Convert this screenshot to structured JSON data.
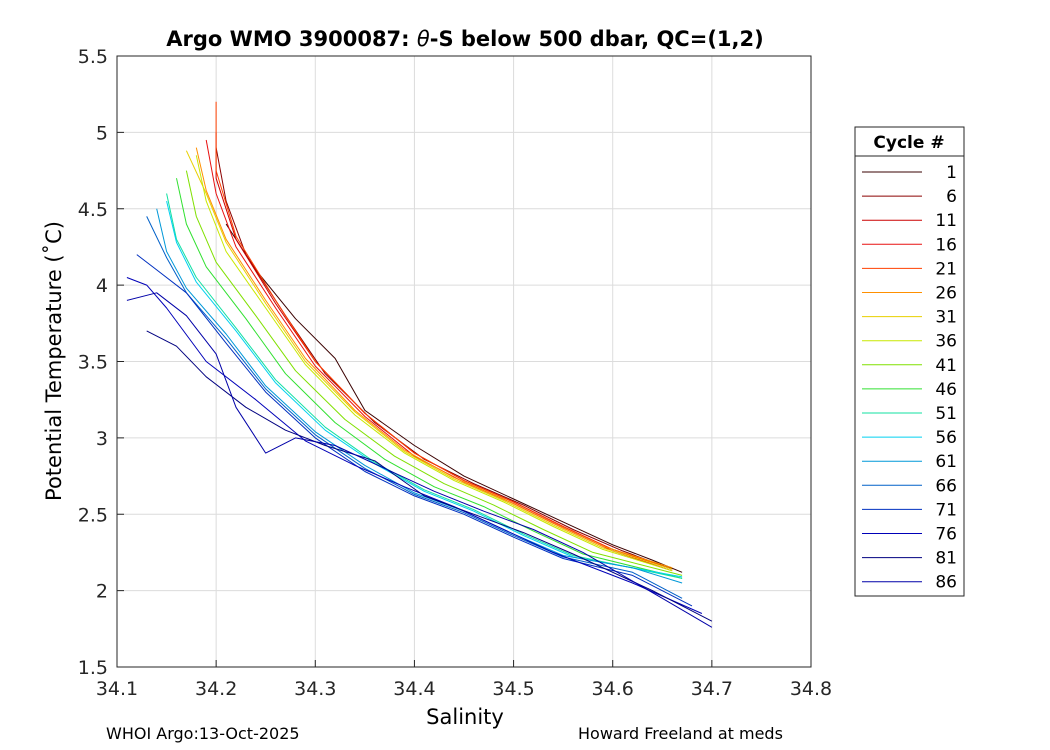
{
  "chart_data": {
    "type": "line",
    "title_prefix": "Argo WMO 3900087: ",
    "title_symbol": "θ",
    "title_suffix": "-S below 500 dbar,  QC=(1,2)",
    "xlabel": "Salinity",
    "ylabel": "Potential Temperature (˚C)",
    "xlim": [
      34.1,
      34.8
    ],
    "ylim": [
      1.5,
      5.5
    ],
    "xticks": [
      34.1,
      34.2,
      34.3,
      34.4,
      34.5,
      34.6,
      34.7,
      34.8
    ],
    "xtick_labels": [
      "34.1",
      "34.2",
      "34.3",
      "34.4",
      "34.5",
      "34.6",
      "34.7",
      "34.8"
    ],
    "yticks": [
      1.5,
      2,
      2.5,
      3,
      3.5,
      4,
      4.5,
      5,
      5.5
    ],
    "ytick_labels": [
      "1.5",
      "2",
      "2.5",
      "3",
      "3.5",
      "4",
      "4.5",
      "5",
      "5.5"
    ],
    "grid": true,
    "legend_position": "right",
    "legend_title": "Cycle #",
    "series": [
      {
        "name": "1",
        "color": "#3a0000",
        "x": [
          34.21,
          34.24,
          34.28,
          34.32,
          34.35,
          34.4,
          34.45,
          34.5,
          34.55,
          34.6,
          34.64,
          34.67
        ],
        "y": [
          4.4,
          4.1,
          3.78,
          3.52,
          3.18,
          2.95,
          2.75,
          2.6,
          2.45,
          2.3,
          2.2,
          2.12
        ]
      },
      {
        "name": "6",
        "color": "#8b0000",
        "x": [
          34.2,
          34.21,
          34.23,
          34.27,
          34.31,
          34.36,
          34.41,
          34.46,
          34.51,
          34.56,
          34.61,
          34.66
        ],
        "y": [
          4.9,
          4.55,
          4.2,
          3.8,
          3.42,
          3.1,
          2.86,
          2.7,
          2.56,
          2.4,
          2.26,
          2.14
        ]
      },
      {
        "name": "11",
        "color": "#cc0000",
        "x": [
          34.2,
          34.2,
          34.22,
          34.26,
          34.3,
          34.35,
          34.4,
          34.45,
          34.5,
          34.55,
          34.6,
          34.66
        ],
        "y": [
          5.0,
          4.7,
          4.3,
          3.88,
          3.5,
          3.16,
          2.9,
          2.72,
          2.58,
          2.42,
          2.27,
          2.14
        ]
      },
      {
        "name": "16",
        "color": "#e81010",
        "x": [
          34.19,
          34.2,
          34.22,
          34.26,
          34.3,
          34.35,
          34.4,
          34.45,
          34.5,
          34.55,
          34.6,
          34.66
        ],
        "y": [
          4.95,
          4.6,
          4.25,
          3.85,
          3.47,
          3.14,
          2.88,
          2.71,
          2.57,
          2.41,
          2.26,
          2.13
        ]
      },
      {
        "name": "21",
        "color": "#ff4000",
        "x": [
          34.2,
          34.2,
          34.22,
          34.26,
          34.3,
          34.35,
          34.4,
          34.45,
          34.5,
          34.55,
          34.6,
          34.66
        ],
        "y": [
          5.2,
          4.75,
          4.32,
          3.9,
          3.5,
          3.16,
          2.9,
          2.72,
          2.58,
          2.42,
          2.27,
          2.14
        ]
      },
      {
        "name": "26",
        "color": "#ff9000",
        "x": [
          34.18,
          34.19,
          34.21,
          34.25,
          34.29,
          34.34,
          34.39,
          34.44,
          34.49,
          34.54,
          34.59,
          34.66
        ],
        "y": [
          4.9,
          4.62,
          4.3,
          3.9,
          3.52,
          3.18,
          2.92,
          2.74,
          2.6,
          2.44,
          2.29,
          2.15
        ]
      },
      {
        "name": "31",
        "color": "#e8d000",
        "x": [
          34.17,
          34.19,
          34.21,
          34.25,
          34.29,
          34.34,
          34.39,
          34.44,
          34.49,
          34.54,
          34.59,
          34.66
        ],
        "y": [
          4.88,
          4.6,
          4.28,
          3.88,
          3.5,
          3.17,
          2.91,
          2.73,
          2.59,
          2.43,
          2.28,
          2.14
        ]
      },
      {
        "name": "36",
        "color": "#c8e800",
        "x": [
          34.18,
          34.19,
          34.21,
          34.25,
          34.29,
          34.34,
          34.39,
          34.44,
          34.49,
          34.54,
          34.59,
          34.66
        ],
        "y": [
          4.85,
          4.55,
          4.22,
          3.85,
          3.48,
          3.15,
          2.9,
          2.72,
          2.58,
          2.42,
          2.27,
          2.13
        ]
      },
      {
        "name": "41",
        "color": "#80e000",
        "x": [
          34.17,
          34.18,
          34.2,
          34.24,
          34.28,
          34.33,
          34.38,
          34.43,
          34.48,
          34.53,
          34.58,
          34.67
        ],
        "y": [
          4.75,
          4.45,
          4.15,
          3.8,
          3.44,
          3.12,
          2.88,
          2.7,
          2.56,
          2.4,
          2.25,
          2.1
        ]
      },
      {
        "name": "46",
        "color": "#30e030",
        "x": [
          34.16,
          34.17,
          34.19,
          34.23,
          34.27,
          34.32,
          34.37,
          34.42,
          34.47,
          34.52,
          34.57,
          34.67
        ],
        "y": [
          4.7,
          4.4,
          4.12,
          3.78,
          3.42,
          3.1,
          2.86,
          2.68,
          2.55,
          2.39,
          2.24,
          2.08
        ]
      },
      {
        "name": "51",
        "color": "#10e0a0",
        "x": [
          34.15,
          34.16,
          34.18,
          34.22,
          34.26,
          34.31,
          34.36,
          34.41,
          34.46,
          34.51,
          34.56,
          34.67
        ],
        "y": [
          4.6,
          4.3,
          4.05,
          3.72,
          3.38,
          3.07,
          2.84,
          2.66,
          2.53,
          2.37,
          2.23,
          2.08
        ]
      },
      {
        "name": "56",
        "color": "#00d0f0",
        "x": [
          34.15,
          34.16,
          34.18,
          34.22,
          34.26,
          34.31,
          34.36,
          34.41,
          34.46,
          34.51,
          34.56,
          34.67
        ],
        "y": [
          4.55,
          4.28,
          4.02,
          3.7,
          3.36,
          3.05,
          2.83,
          2.65,
          2.52,
          2.36,
          2.22,
          2.09
        ]
      },
      {
        "name": "61",
        "color": "#0098d8",
        "x": [
          34.14,
          34.15,
          34.17,
          34.21,
          34.25,
          34.3,
          34.35,
          34.4,
          34.45,
          34.5,
          34.55,
          34.62,
          34.67
        ],
        "y": [
          4.5,
          4.22,
          3.98,
          3.68,
          3.34,
          3.04,
          2.82,
          2.64,
          2.52,
          2.37,
          2.23,
          2.15,
          2.05
        ]
      },
      {
        "name": "66",
        "color": "#0060c8",
        "x": [
          34.13,
          34.15,
          34.17,
          34.21,
          34.25,
          34.3,
          34.35,
          34.4,
          34.45,
          34.5,
          34.55,
          34.62,
          34.67
        ],
        "y": [
          4.45,
          4.18,
          3.95,
          3.65,
          3.32,
          3.02,
          2.8,
          2.63,
          2.51,
          2.36,
          2.22,
          2.12,
          1.95
        ]
      },
      {
        "name": "71",
        "color": "#0030c0",
        "x": [
          34.12,
          34.14,
          34.17,
          34.21,
          34.25,
          34.3,
          34.35,
          34.4,
          34.45,
          34.5,
          34.55,
          34.62,
          34.68
        ],
        "y": [
          4.2,
          4.1,
          3.95,
          3.62,
          3.3,
          3.0,
          2.78,
          2.62,
          2.5,
          2.35,
          2.21,
          2.1,
          1.9
        ]
      },
      {
        "name": "76",
        "color": "#0000b8",
        "x": [
          34.11,
          34.13,
          34.15,
          34.19,
          34.24,
          34.29,
          34.34,
          34.39,
          34.44,
          34.49,
          34.54,
          34.62,
          34.69
        ],
        "y": [
          4.05,
          4.0,
          3.85,
          3.5,
          3.25,
          2.98,
          2.82,
          2.68,
          2.55,
          2.4,
          2.25,
          2.05,
          1.85
        ]
      },
      {
        "name": "81",
        "color": "#000080",
        "x": [
          34.13,
          34.16,
          34.19,
          34.23,
          34.27,
          34.31,
          34.36,
          34.41,
          34.46,
          34.51,
          34.56,
          34.64,
          34.7
        ],
        "y": [
          3.7,
          3.6,
          3.4,
          3.2,
          3.05,
          2.95,
          2.85,
          2.62,
          2.5,
          2.38,
          2.24,
          2.0,
          1.8
        ]
      },
      {
        "name": "86",
        "color": "#0000a8",
        "x": [
          34.11,
          34.14,
          34.17,
          34.2,
          34.22,
          34.25,
          34.28,
          34.32,
          34.37,
          34.42,
          34.47,
          34.52,
          34.57,
          34.65,
          34.7
        ],
        "y": [
          3.9,
          3.95,
          3.8,
          3.55,
          3.2,
          2.9,
          3.0,
          2.95,
          2.8,
          2.65,
          2.52,
          2.4,
          2.25,
          1.95,
          1.76
        ]
      }
    ]
  },
  "footer": {
    "left": "WHOI Argo:13-Oct-2025",
    "right": "Howard Freeland at meds"
  }
}
